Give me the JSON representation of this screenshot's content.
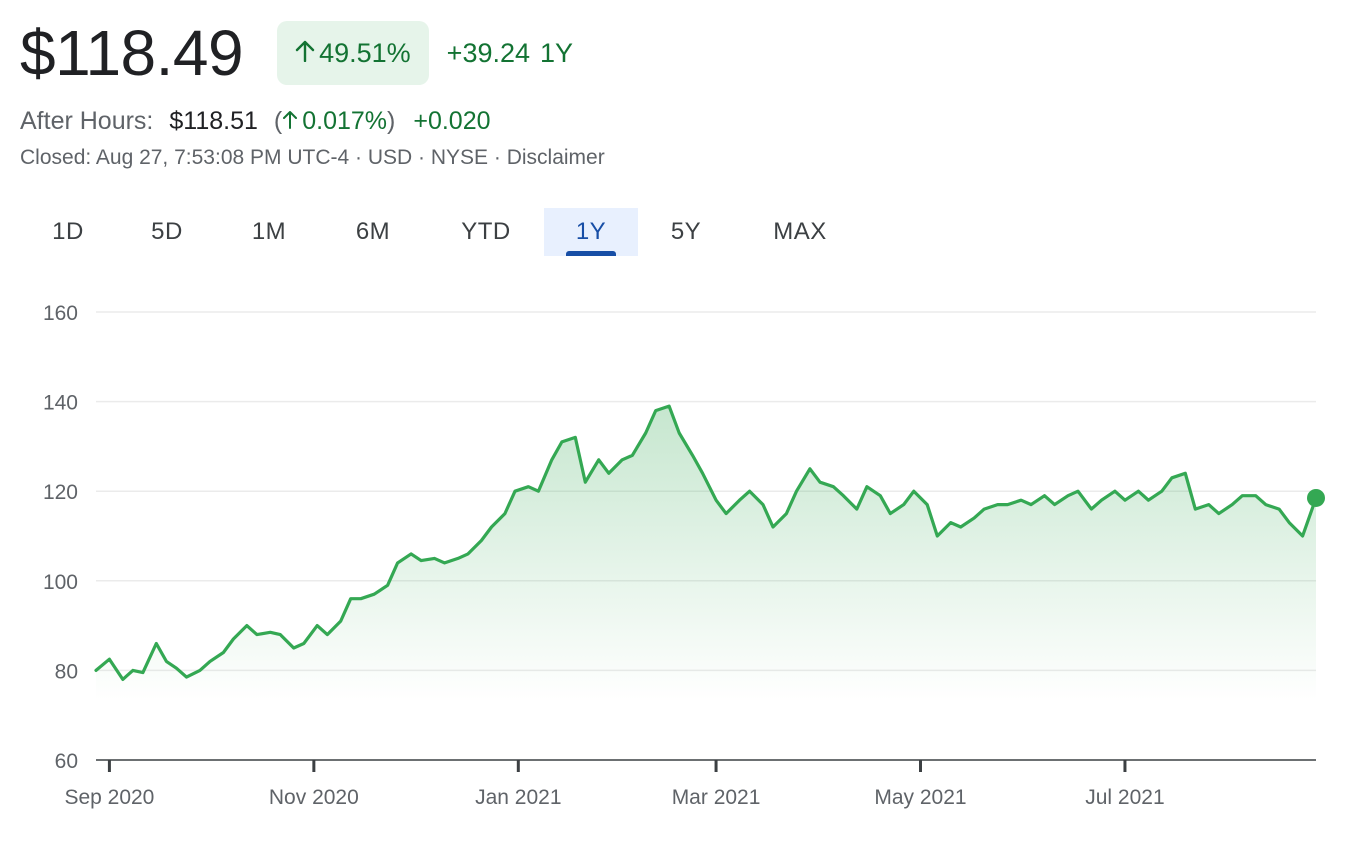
{
  "quote": {
    "price": "$118.49",
    "change_pct": "49.51%",
    "change_abs": "+39.24",
    "change_period": "1Y",
    "after_hours_label": "After Hours:",
    "after_hours_price": "$118.51",
    "after_hours_pct": "0.017%",
    "after_hours_abs": "+0.020",
    "meta": [
      "Closed: Aug 27, 7:53:08 PM UTC-4",
      "USD",
      "NYSE",
      "Disclaimer"
    ],
    "arrow_icon": "arrow-up-icon"
  },
  "range_tabs": {
    "items": [
      "1D",
      "5D",
      "1M",
      "6M",
      "YTD",
      "1Y",
      "5Y",
      "MAX"
    ],
    "selected": "1Y"
  },
  "colors": {
    "line": "#34a853",
    "positive_text": "#137333",
    "badge_bg": "#e6f4ea",
    "selected_tab": "#174ea6",
    "selected_tab_bg": "#e8f0fe",
    "gridline": "#ebebeb",
    "axis_text": "#5f6368"
  },
  "chart_data": {
    "type": "area",
    "title": "",
    "xlabel": "",
    "ylabel": "",
    "ylim": [
      60,
      160
    ],
    "yticks": [
      60,
      80,
      100,
      120,
      140,
      160
    ],
    "xlim": [
      "2020-08-28",
      "2021-08-27"
    ],
    "xticks": [
      {
        "date": "2020-09-01",
        "label": "Sep 2020"
      },
      {
        "date": "2020-11-01",
        "label": "Nov 2020"
      },
      {
        "date": "2021-01-01",
        "label": "Jan 2021"
      },
      {
        "date": "2021-03-01",
        "label": "Mar 2021"
      },
      {
        "date": "2021-05-01",
        "label": "May 2021"
      },
      {
        "date": "2021-07-01",
        "label": "Jul 2021"
      }
    ],
    "grid": true,
    "legend": "none",
    "series": [
      {
        "x": [
          "2020-08-28",
          "2020-09-01",
          "2020-09-05",
          "2020-09-08",
          "2020-09-11",
          "2020-09-15",
          "2020-09-18",
          "2020-09-21",
          "2020-09-24",
          "2020-09-28",
          "2020-10-01",
          "2020-10-05",
          "2020-10-08",
          "2020-10-12",
          "2020-10-15",
          "2020-10-19",
          "2020-10-22",
          "2020-10-26",
          "2020-10-29",
          "2020-11-02",
          "2020-11-05",
          "2020-11-09",
          "2020-11-12",
          "2020-11-15",
          "2020-11-19",
          "2020-11-23",
          "2020-11-26",
          "2020-11-30",
          "2020-12-03",
          "2020-12-07",
          "2020-12-10",
          "2020-12-14",
          "2020-12-17",
          "2020-12-21",
          "2020-12-24",
          "2020-12-28",
          "2020-12-31",
          "2021-01-04",
          "2021-01-07",
          "2021-01-11",
          "2021-01-14",
          "2021-01-18",
          "2021-01-21",
          "2021-01-25",
          "2021-01-28",
          "2021-02-01",
          "2021-02-04",
          "2021-02-08",
          "2021-02-11",
          "2021-02-15",
          "2021-02-18",
          "2021-02-22",
          "2021-02-25",
          "2021-03-01",
          "2021-03-04",
          "2021-03-08",
          "2021-03-11",
          "2021-03-15",
          "2021-03-18",
          "2021-03-22",
          "2021-03-25",
          "2021-03-29",
          "2021-04-01",
          "2021-04-05",
          "2021-04-08",
          "2021-04-12",
          "2021-04-15",
          "2021-04-19",
          "2021-04-22",
          "2021-04-26",
          "2021-04-29",
          "2021-05-03",
          "2021-05-06",
          "2021-05-10",
          "2021-05-13",
          "2021-05-17",
          "2021-05-20",
          "2021-05-24",
          "2021-05-27",
          "2021-05-31",
          "2021-06-03",
          "2021-06-07",
          "2021-06-10",
          "2021-06-14",
          "2021-06-17",
          "2021-06-21",
          "2021-06-24",
          "2021-06-28",
          "2021-07-01",
          "2021-07-05",
          "2021-07-08",
          "2021-07-12",
          "2021-07-15",
          "2021-07-19",
          "2021-07-22",
          "2021-07-26",
          "2021-07-29",
          "2021-08-02",
          "2021-08-05",
          "2021-08-09",
          "2021-08-12",
          "2021-08-16",
          "2021-08-19",
          "2021-08-23",
          "2021-08-27"
        ],
        "values": [
          80,
          82.5,
          78,
          80,
          79.5,
          86,
          82,
          80.5,
          78.5,
          80,
          82,
          84,
          87,
          90,
          88,
          88.5,
          88,
          85,
          86,
          90,
          88,
          91,
          96,
          96,
          97,
          99,
          104,
          106,
          104.5,
          105,
          104,
          105,
          106,
          109,
          112,
          115,
          120,
          121,
          120,
          127,
          131,
          132,
          122,
          127,
          124,
          127,
          128,
          133,
          138,
          139,
          133,
          128,
          124,
          118,
          115,
          118,
          120,
          117,
          112,
          115,
          120,
          125,
          122,
          121,
          119,
          116,
          121,
          119,
          115,
          117,
          120,
          117,
          110,
          113,
          112,
          114,
          116,
          117,
          117,
          118,
          117,
          119,
          117,
          119,
          120,
          116,
          118,
          120,
          118,
          120,
          118,
          120,
          123,
          124,
          116,
          117,
          115,
          117,
          119,
          119,
          117,
          116,
          113,
          110,
          118.49
        ]
      }
    ]
  }
}
